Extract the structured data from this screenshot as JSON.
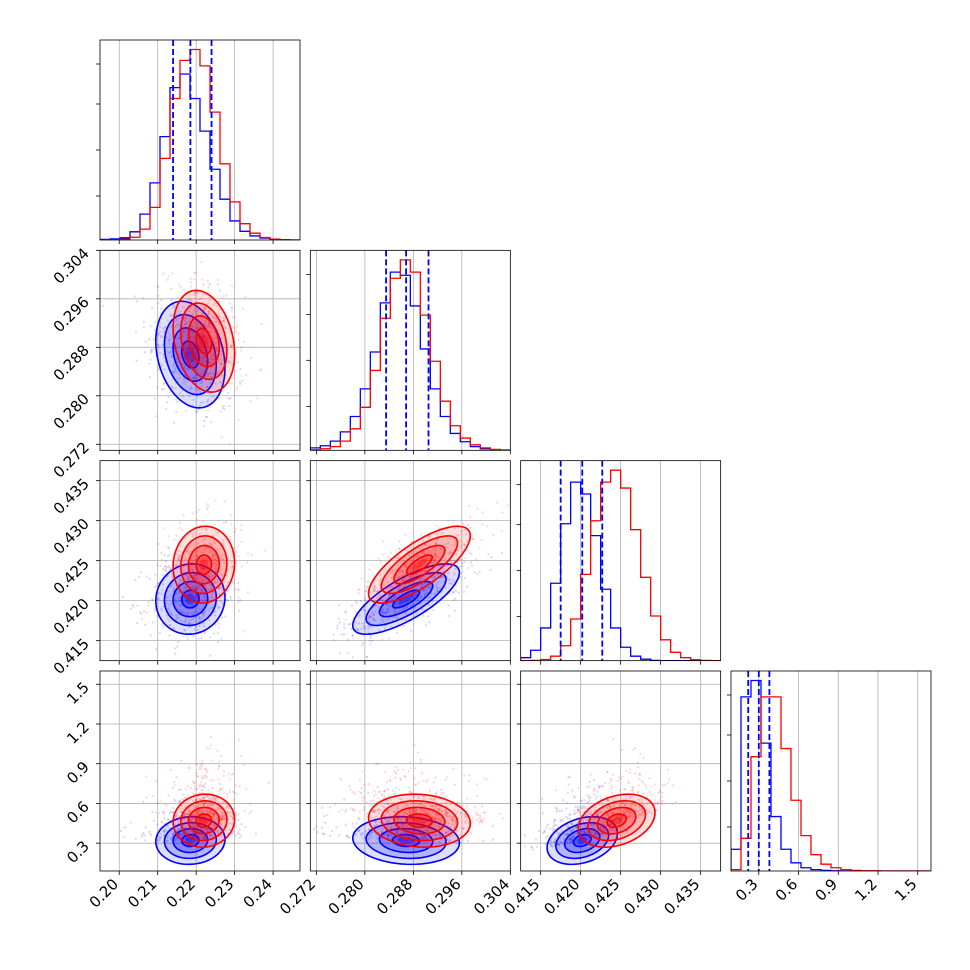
{
  "colors": {
    "series_a": "#0000ff",
    "series_b": "#ff0000",
    "grid": "#b0b0b0",
    "frame": "#000000"
  },
  "chart_data": {
    "type": "corner",
    "title": "",
    "grid": true,
    "series": [
      {
        "color": "#0000ff",
        "means": [
          0.2185,
          0.2868,
          0.4202,
          0.32
        ],
        "sds": [
          0.0045,
          0.0044,
          0.0022,
          0.09
        ],
        "quantiles": [
          [
            0.214,
            0.2185,
            0.224
          ],
          [
            0.2835,
            0.2868,
            0.2905
          ],
          [
            0.4175,
            0.4202,
            0.4227
          ],
          [
            0.22,
            0.3,
            0.38
          ]
        ]
      },
      {
        "color": "#ff0000",
        "means": [
          0.222,
          0.289,
          0.4245,
          0.47
        ],
        "sds": [
          0.004,
          0.0042,
          0.0024,
          0.1
        ],
        "quantiles": []
      }
    ],
    "params": [
      {
        "range": [
          0.195,
          0.247
        ],
        "ticks": [
          "0.20",
          "0.21",
          "0.22",
          "0.23",
          "0.24"
        ],
        "hist": {
          "edges": [
            0.195,
            0.1976,
            0.2002,
            0.2028,
            0.2054,
            0.208,
            0.2106,
            0.2132,
            0.2158,
            0.2184,
            0.221,
            0.2236,
            0.2262,
            0.2288,
            0.2314,
            0.234,
            0.2366,
            0.2392,
            0.2418,
            0.2444,
            0.247
          ],
          "series_a": [
            2,
            4,
            8,
            30,
            95,
            210,
            380,
            560,
            610,
            520,
            400,
            260,
            150,
            70,
            32,
            15,
            7,
            3,
            1,
            0
          ],
          "series_b": [
            0,
            1,
            3,
            10,
            40,
            120,
            300,
            520,
            660,
            700,
            640,
            470,
            280,
            140,
            60,
            25,
            9,
            3,
            1,
            0
          ]
        }
      },
      {
        "range": [
          0.271,
          0.304
        ],
        "ticks": [
          "0.272",
          "0.280",
          "0.288",
          "0.296",
          "0.304"
        ],
        "hist": {
          "edges": [
            0.271,
            0.27265,
            0.2743,
            0.27595,
            0.2776,
            0.27925,
            0.2809,
            0.28255,
            0.2842,
            0.28585,
            0.2875,
            0.28915,
            0.2908,
            0.29245,
            0.2941,
            0.29575,
            0.2974,
            0.29905,
            0.3007,
            0.30235,
            0.304
          ],
          "series_a": [
            8,
            15,
            30,
            60,
            110,
            200,
            320,
            480,
            580,
            570,
            470,
            330,
            200,
            110,
            55,
            28,
            12,
            5,
            2,
            1
          ],
          "series_b": [
            2,
            5,
            12,
            30,
            70,
            140,
            260,
            430,
            560,
            620,
            580,
            440,
            290,
            160,
            80,
            40,
            18,
            8,
            3,
            1
          ]
        }
      },
      {
        "range": [
          0.4125,
          0.4375
        ],
        "ticks": [
          "0.415",
          "0.420",
          "0.425",
          "0.430",
          "0.435"
        ],
        "hist": {
          "edges": [
            0.4125,
            0.41375,
            0.415,
            0.41625,
            0.4175,
            0.41875,
            0.42,
            0.42125,
            0.4225,
            0.42375,
            0.425,
            0.42625,
            0.4275,
            0.42875,
            0.43,
            0.43125,
            0.4325,
            0.43375,
            0.435,
            0.43625,
            0.4375
          ],
          "series_a": [
            10,
            35,
            110,
            260,
            460,
            600,
            560,
            420,
            240,
            110,
            45,
            15,
            5,
            1,
            0,
            0,
            0,
            0,
            0,
            0
          ],
          "series_b": [
            0,
            1,
            4,
            15,
            50,
            140,
            290,
            470,
            600,
            640,
            580,
            440,
            280,
            150,
            70,
            28,
            10,
            3,
            1,
            0
          ]
        }
      },
      {
        "range": [
          0.09,
          1.6
        ],
        "ticks": [
          "0.3",
          "0.6",
          "0.9",
          "1.2",
          "1.5"
        ],
        "hist": {
          "edges": [
            0.09,
            0.1655,
            0.241,
            0.3165,
            0.392,
            0.4675,
            0.543,
            0.6185,
            0.694,
            0.7695,
            0.845,
            0.9205,
            0.996,
            1.0715,
            1.147,
            1.2225,
            1.298,
            1.3735,
            1.449,
            1.5245,
            1.6
          ],
          "series_a": [
            80,
            640,
            700,
            470,
            200,
            80,
            30,
            12,
            5,
            2,
            1,
            0,
            0,
            0,
            0,
            0,
            0,
            0,
            0,
            0
          ],
          "series_b": [
            5,
            120,
            420,
            640,
            640,
            450,
            260,
            130,
            60,
            25,
            12,
            5,
            2,
            1,
            1,
            0,
            0,
            0,
            0,
            0
          ]
        }
      }
    ]
  }
}
